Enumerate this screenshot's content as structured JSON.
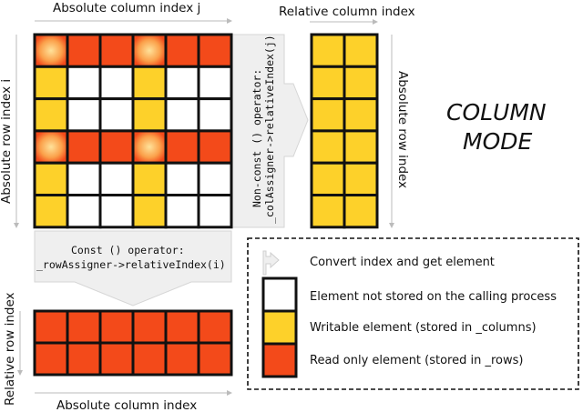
{
  "colors": {
    "red": "#f34a1a",
    "yellow": "#fdd12a",
    "white": "#ffffff",
    "grid_line": "#111111",
    "arrow_fill": "#efefef",
    "arrow_stroke": "#cfcfcf",
    "glow": "#ffd27a"
  },
  "labels": {
    "top_abs_col": "Absolute column index j",
    "top_rel_col": "Relative column index",
    "left_abs_row": "Absolute row index i",
    "right_abs_row": "Absolute row index",
    "left_rel_row": "Relative row index",
    "bottom_abs_col": "Absolute column index"
  },
  "mode": {
    "line1": "COLUMN",
    "line2": "MODE"
  },
  "operators": {
    "nonconst_line1": "Non-const () operator:",
    "nonconst_line2": "_colAssigner->relativeIndex(j)",
    "const_line1": "Const () operator:",
    "const_line2": "_rowAssigner->relativeIndex(i)"
  },
  "legend": {
    "convert": "Convert index and get element",
    "not_stored": "Element not stored on the calling process",
    "writable": "Writable element (stored in _columns)",
    "readonly": "Read only element (stored in _rows)"
  },
  "grids": {
    "main": [
      [
        "R",
        "R",
        "R",
        "R",
        "R",
        "R"
      ],
      [
        "Y",
        "W",
        "W",
        "Y",
        "W",
        "W"
      ],
      [
        "Y",
        "W",
        "W",
        "Y",
        "W",
        "W"
      ],
      [
        "R",
        "R",
        "R",
        "R",
        "R",
        "R"
      ],
      [
        "Y",
        "W",
        "W",
        "Y",
        "W",
        "W"
      ],
      [
        "Y",
        "W",
        "W",
        "Y",
        "W",
        "W"
      ]
    ],
    "glow_cells": [
      [
        0,
        0
      ],
      [
        0,
        3
      ],
      [
        3,
        0
      ],
      [
        3,
        3
      ]
    ],
    "columns": [
      [
        "Y",
        "Y"
      ],
      [
        "Y",
        "Y"
      ],
      [
        "Y",
        "Y"
      ],
      [
        "Y",
        "Y"
      ],
      [
        "Y",
        "Y"
      ],
      [
        "Y",
        "Y"
      ]
    ],
    "rows": [
      [
        "R",
        "R",
        "R",
        "R",
        "R",
        "R"
      ],
      [
        "R",
        "R",
        "R",
        "R",
        "R",
        "R"
      ]
    ]
  }
}
